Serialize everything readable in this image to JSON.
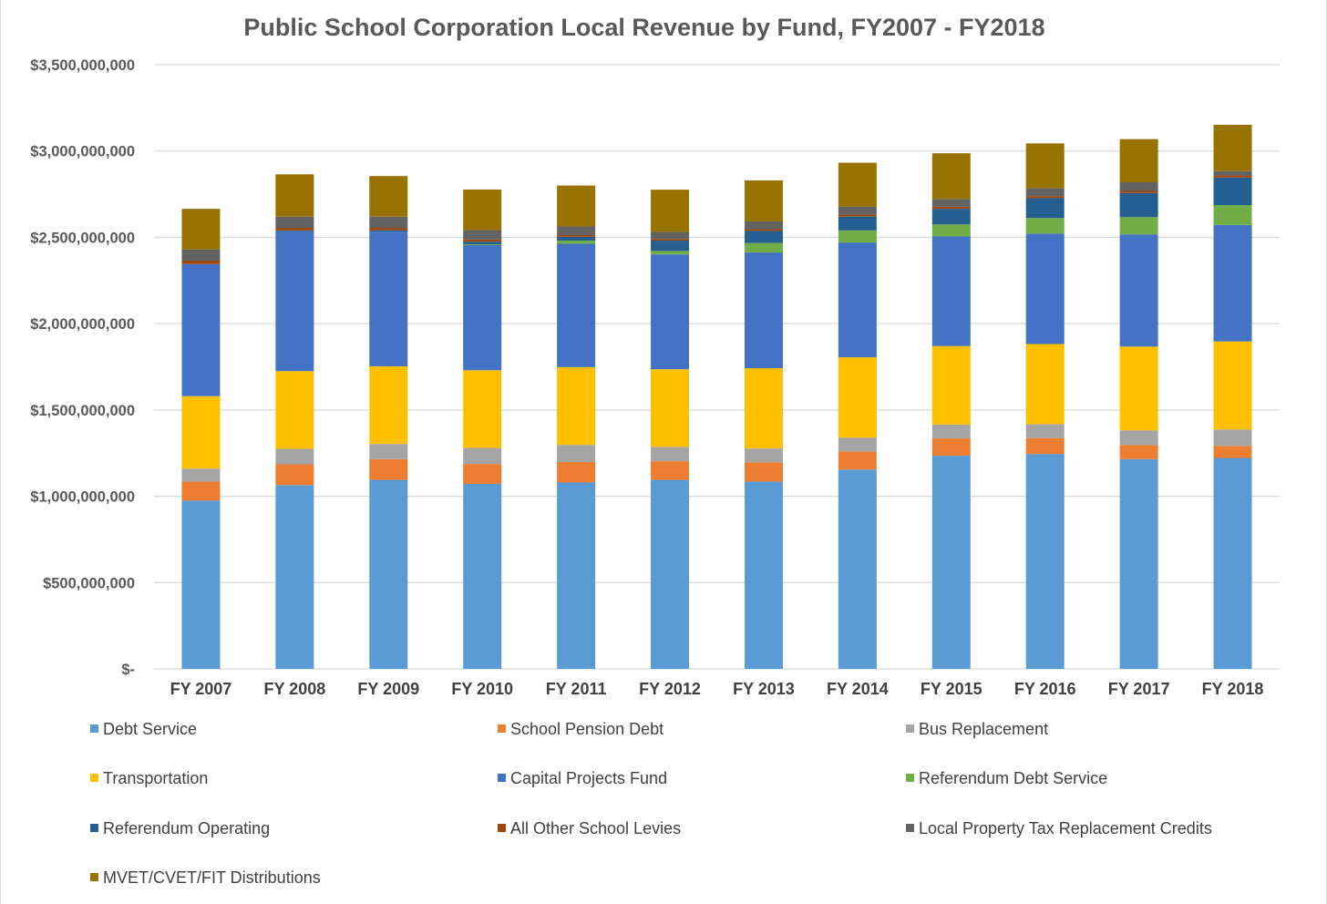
{
  "chart_data": {
    "type": "bar",
    "stacked": true,
    "title": "Public School Corporation Local Revenue by Fund, FY2007 - FY2018",
    "xlabel": "",
    "ylabel": "",
    "ylim": [
      0,
      3500000000
    ],
    "yticks": [
      0,
      500000000,
      1000000000,
      1500000000,
      2000000000,
      2500000000,
      3000000000,
      3500000000
    ],
    "ytick_labels": [
      "$-",
      "$500,000,000",
      "$1,000,000,000",
      "$1,500,000,000",
      "$2,000,000,000",
      "$2,500,000,000",
      "$3,000,000,000",
      "$3,500,000,000"
    ],
    "grid": true,
    "legend_position": "bottom",
    "categories": [
      "FY 2007",
      "FY 2008",
      "FY 2009",
      "FY 2010",
      "FY 2011",
      "FY 2012",
      "FY 2013",
      "FY 2014",
      "FY 2015",
      "FY 2016",
      "FY 2017",
      "FY 2018"
    ],
    "series": [
      {
        "name": "Debt Service",
        "color": "#5B9BD5",
        "values": [
          975000000,
          1065000000,
          1095000000,
          1072000000,
          1080000000,
          1095000000,
          1085000000,
          1155000000,
          1235000000,
          1245000000,
          1215000000,
          1222000000
        ]
      },
      {
        "name": "School Pension Debt",
        "color": "#ED7D31",
        "values": [
          110000000,
          120000000,
          120000000,
          115000000,
          118000000,
          108000000,
          112000000,
          105000000,
          100000000,
          92000000,
          82000000,
          70000000
        ]
      },
      {
        "name": "Bus Replacement",
        "color": "#A5A5A5",
        "values": [
          75000000,
          90000000,
          88000000,
          93000000,
          100000000,
          83000000,
          80000000,
          80000000,
          80000000,
          80000000,
          85000000,
          95000000
        ]
      },
      {
        "name": "Transportation",
        "color": "#FFC000",
        "values": [
          420000000,
          450000000,
          450000000,
          450000000,
          450000000,
          450000000,
          465000000,
          465000000,
          455000000,
          465000000,
          485000000,
          510000000
        ]
      },
      {
        "name": "Capital Projects Fund",
        "color": "#4472C4",
        "values": [
          765000000,
          810000000,
          780000000,
          725000000,
          715000000,
          665000000,
          670000000,
          665000000,
          635000000,
          640000000,
          650000000,
          675000000
        ]
      },
      {
        "name": "Referendum Debt Service",
        "color": "#70AD47",
        "values": [
          0,
          0,
          0,
          5000000,
          18000000,
          20000000,
          55000000,
          70000000,
          70000000,
          90000000,
          100000000,
          115000000
        ]
      },
      {
        "name": "Referendum Operating",
        "color": "#255E91",
        "values": [
          0,
          5000000,
          8000000,
          15000000,
          22000000,
          60000000,
          70000000,
          80000000,
          90000000,
          115000000,
          140000000,
          160000000
        ]
      },
      {
        "name": "All Other School Levies",
        "color": "#9E480E",
        "values": [
          20000000,
          15000000,
          14000000,
          12000000,
          10000000,
          10000000,
          10000000,
          12000000,
          12000000,
          12000000,
          12000000,
          12000000
        ]
      },
      {
        "name": "Local Property Tax Replacement Credits",
        "color": "#636363",
        "values": [
          65000000,
          65000000,
          65000000,
          55000000,
          50000000,
          40000000,
          45000000,
          45000000,
          45000000,
          45000000,
          50000000,
          25000000
        ]
      },
      {
        "name": "MVET/CVET/FIT Distributions",
        "color": "#997300",
        "values": [
          235000000,
          245000000,
          235000000,
          235000000,
          237000000,
          245000000,
          238000000,
          255000000,
          265000000,
          260000000,
          250000000,
          268000000
        ]
      }
    ]
  }
}
